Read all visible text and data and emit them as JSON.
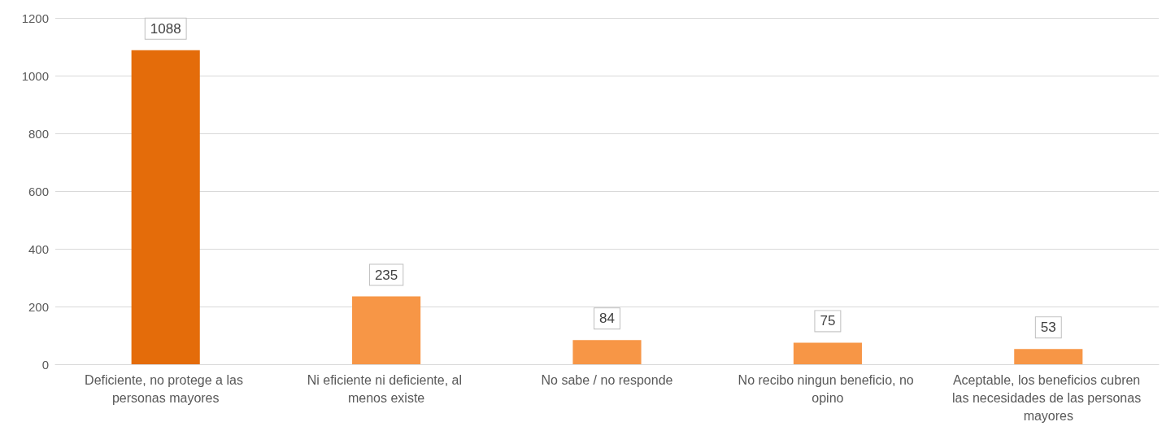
{
  "chart_data": {
    "type": "bar",
    "categories": [
      "Deficiente, no protege a las personas mayores",
      "Ni eficiente ni deficiente, al menos existe",
      "No sabe / no responde",
      "No recibo ningun beneficio, no opino",
      "Aceptable, los beneficios cubren las necesidades de las personas mayores"
    ],
    "values": [
      1088,
      235,
      84,
      75,
      53
    ],
    "colors": [
      "#e46c0a",
      "#f79646",
      "#f79646",
      "#f79646",
      "#f79646"
    ],
    "ylim": [
      0,
      1200
    ],
    "yticks": [
      0,
      200,
      400,
      600,
      800,
      1000,
      1200
    ],
    "grid": "y",
    "data_labels": true
  }
}
